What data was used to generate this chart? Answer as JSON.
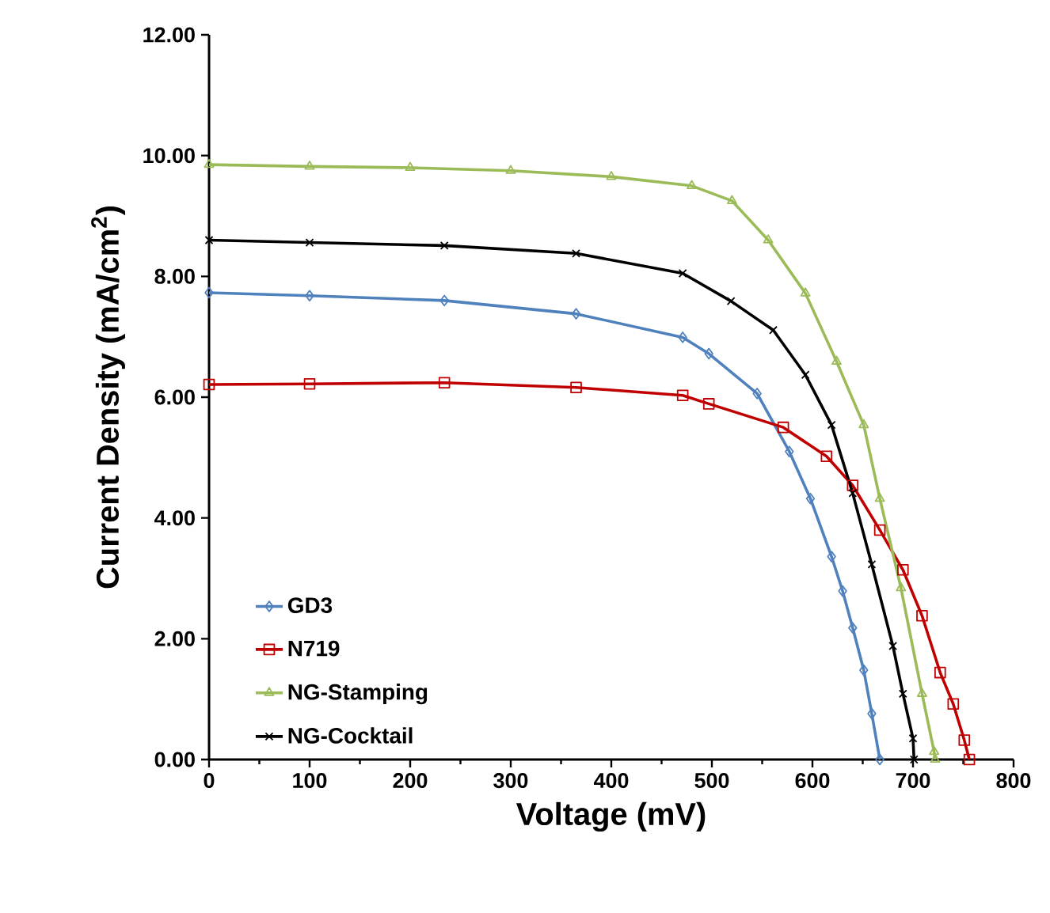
{
  "chart_data": {
    "type": "line",
    "xlabel": "Voltage (mV)",
    "ylabel": "Current Density (mA/cm$^{2}$)",
    "xlim": [
      0,
      800
    ],
    "ylim": [
      0,
      12
    ],
    "xticks": [
      0,
      100,
      200,
      300,
      400,
      500,
      600,
      700,
      800
    ],
    "yticks": [
      {
        "value": 0,
        "label": "0.00"
      },
      {
        "value": 2,
        "label": "2.00"
      },
      {
        "value": 4,
        "label": "4.00"
      },
      {
        "value": 6,
        "label": "6.00"
      },
      {
        "value": 8,
        "label": "8.00"
      },
      {
        "value": 10,
        "label": "10.00"
      },
      {
        "value": 12,
        "label": "12.00"
      }
    ],
    "legend": "bottom left",
    "series": [
      {
        "name": "GD3",
        "color": "#4f81bd",
        "marker": "diamond",
        "x": [
          0,
          100,
          234,
          365,
          471,
          497,
          545,
          577,
          598,
          619,
          630,
          640,
          651,
          659,
          667
        ],
        "values": [
          7.73,
          7.68,
          7.6,
          7.38,
          6.99,
          6.72,
          6.06,
          5.1,
          4.32,
          3.36,
          2.79,
          2.18,
          1.48,
          0.76,
          0
        ]
      },
      {
        "name": "N719",
        "color": "#c00000",
        "marker": "square",
        "x": [
          0,
          100,
          234,
          365,
          471,
          497,
          571,
          614,
          640,
          667,
          690,
          709,
          727,
          740,
          751,
          756
        ],
        "values": [
          6.21,
          6.22,
          6.24,
          6.16,
          6.03,
          5.89,
          5.5,
          5.02,
          4.54,
          3.8,
          3.14,
          2.38,
          1.44,
          0.92,
          0.32,
          0
        ]
      },
      {
        "name": "NG-Stamping",
        "color": "#9bbb59",
        "marker": "triangle",
        "x": [
          0,
          100,
          200,
          300,
          400,
          480,
          520,
          556,
          593,
          624,
          651,
          667,
          688,
          709,
          721,
          722
        ],
        "values": [
          9.85,
          9.82,
          9.8,
          9.75,
          9.65,
          9.5,
          9.25,
          8.6,
          7.72,
          6.59,
          5.54,
          4.32,
          2.84,
          1.09,
          0.13,
          0
        ]
      },
      {
        "name": "NG-Cocktail",
        "color": "#000000",
        "marker": "cross",
        "x": [
          0,
          100,
          234,
          365,
          471,
          519,
          561,
          593,
          619,
          640,
          659,
          680,
          690,
          700,
          701
        ],
        "values": [
          8.6,
          8.56,
          8.51,
          8.38,
          8.05,
          7.59,
          7.11,
          6.37,
          5.54,
          4.41,
          3.23,
          1.88,
          1.09,
          0.35,
          0
        ]
      }
    ]
  }
}
